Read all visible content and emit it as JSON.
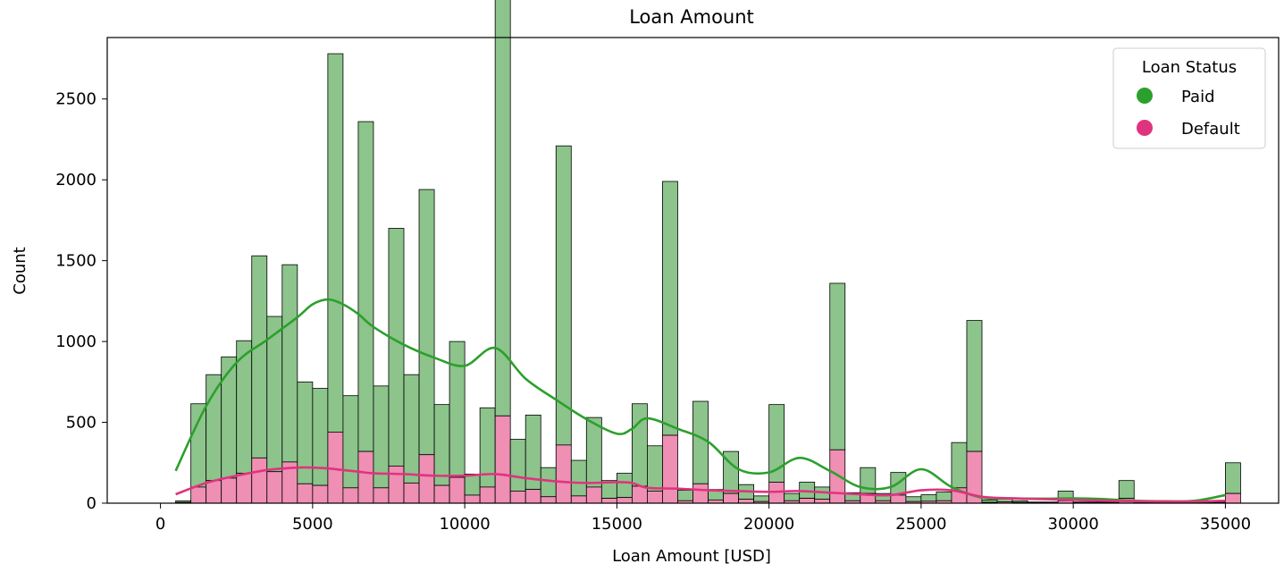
{
  "chart_data": {
    "type": "bar",
    "stacked": true,
    "title": "Loan Amount",
    "xlabel": "Loan Amount [USD]",
    "ylabel": "Count",
    "xlim": [
      -1750,
      36750
    ],
    "ylim": [
      0,
      2880
    ],
    "xticks": [
      0,
      5000,
      10000,
      15000,
      20000,
      25000,
      30000,
      35000
    ],
    "yticks": [
      0,
      500,
      1000,
      1500,
      2000,
      2500
    ],
    "bin_width": 500,
    "legend_position": "upper right",
    "legend_title": "Loan Status",
    "colors": {
      "paid": "#2ca02c",
      "default": "#e0337e"
    },
    "bins": [
      {
        "x0": 500,
        "paid": 10,
        "default": 5
      },
      {
        "x0": 1000,
        "paid": 515,
        "default": 100
      },
      {
        "x0": 1500,
        "paid": 655,
        "default": 140
      },
      {
        "x0": 2000,
        "paid": 750,
        "default": 155
      },
      {
        "x0": 2500,
        "paid": 820,
        "default": 185
      },
      {
        "x0": 3000,
        "paid": 1250,
        "default": 280
      },
      {
        "x0": 3500,
        "paid": 960,
        "default": 195
      },
      {
        "x0": 4000,
        "paid": 1220,
        "default": 255
      },
      {
        "x0": 4500,
        "paid": 630,
        "default": 120
      },
      {
        "x0": 5000,
        "paid": 600,
        "default": 110
      },
      {
        "x0": 5500,
        "paid": 2340,
        "default": 440
      },
      {
        "x0": 6000,
        "paid": 570,
        "default": 95
      },
      {
        "x0": 6500,
        "paid": 2040,
        "default": 320
      },
      {
        "x0": 7000,
        "paid": 630,
        "default": 95
      },
      {
        "x0": 7500,
        "paid": 1470,
        "default": 230
      },
      {
        "x0": 8000,
        "paid": 670,
        "default": 125
      },
      {
        "x0": 8500,
        "paid": 1640,
        "default": 300
      },
      {
        "x0": 9000,
        "paid": 500,
        "default": 110
      },
      {
        "x0": 9500,
        "paid": 840,
        "default": 160
      },
      {
        "x0": 10000,
        "paid": 130,
        "default": 50
      },
      {
        "x0": 10500,
        "paid": 490,
        "default": 100
      },
      {
        "x0": 11000,
        "paid": 2780,
        "default": 540
      },
      {
        "x0": 11500,
        "paid": 320,
        "default": 75
      },
      {
        "x0": 12000,
        "paid": 460,
        "default": 85
      },
      {
        "x0": 12500,
        "paid": 180,
        "default": 40
      },
      {
        "x0": 13000,
        "paid": 1850,
        "default": 360
      },
      {
        "x0": 13500,
        "paid": 220,
        "default": 45
      },
      {
        "x0": 14000,
        "paid": 430,
        "default": 100
      },
      {
        "x0": 14500,
        "paid": 110,
        "default": 30
      },
      {
        "x0": 15000,
        "paid": 150,
        "default": 35
      },
      {
        "x0": 15500,
        "paid": 510,
        "default": 105
      },
      {
        "x0": 16000,
        "paid": 280,
        "default": 75
      },
      {
        "x0": 16500,
        "paid": 1570,
        "default": 420
      },
      {
        "x0": 17000,
        "paid": 65,
        "default": 15
      },
      {
        "x0": 17500,
        "paid": 510,
        "default": 120
      },
      {
        "x0": 18000,
        "paid": 65,
        "default": 20
      },
      {
        "x0": 18500,
        "paid": 260,
        "default": 60
      },
      {
        "x0": 19000,
        "paid": 90,
        "default": 25
      },
      {
        "x0": 19500,
        "paid": 35,
        "default": 10
      },
      {
        "x0": 20000,
        "paid": 480,
        "default": 130
      },
      {
        "x0": 20500,
        "paid": 45,
        "default": 15
      },
      {
        "x0": 21000,
        "paid": 100,
        "default": 30
      },
      {
        "x0": 21500,
        "paid": 75,
        "default": 25
      },
      {
        "x0": 22000,
        "paid": 1030,
        "default": 330
      },
      {
        "x0": 22500,
        "paid": 50,
        "default": 15
      },
      {
        "x0": 23000,
        "paid": 160,
        "default": 60
      },
      {
        "x0": 23500,
        "paid": 45,
        "default": 15
      },
      {
        "x0": 24000,
        "paid": 140,
        "default": 50
      },
      {
        "x0": 24500,
        "paid": 30,
        "default": 10
      },
      {
        "x0": 25000,
        "paid": 40,
        "default": 12
      },
      {
        "x0": 25500,
        "paid": 55,
        "default": 15
      },
      {
        "x0": 26000,
        "paid": 280,
        "default": 95
      },
      {
        "x0": 26500,
        "paid": 810,
        "default": 320
      },
      {
        "x0": 27000,
        "paid": 15,
        "default": 5
      },
      {
        "x0": 27500,
        "paid": 20,
        "default": 8
      },
      {
        "x0": 28000,
        "paid": 10,
        "default": 5
      },
      {
        "x0": 28500,
        "paid": 5,
        "default": 2
      },
      {
        "x0": 29000,
        "paid": 5,
        "default": 2
      },
      {
        "x0": 29500,
        "paid": 60,
        "default": 15
      },
      {
        "x0": 30000,
        "paid": 5,
        "default": 2
      },
      {
        "x0": 30500,
        "paid": 5,
        "default": 2
      },
      {
        "x0": 31000,
        "paid": 5,
        "default": 2
      },
      {
        "x0": 31500,
        "paid": 110,
        "default": 30
      },
      {
        "x0": 32000,
        "paid": 5,
        "default": 2
      },
      {
        "x0": 32500,
        "paid": 5,
        "default": 2
      },
      {
        "x0": 33000,
        "paid": 5,
        "default": 2
      },
      {
        "x0": 33500,
        "paid": 5,
        "default": 2
      },
      {
        "x0": 34000,
        "paid": 5,
        "default": 2
      },
      {
        "x0": 34500,
        "paid": 5,
        "default": 2
      },
      {
        "x0": 35000,
        "paid": 190,
        "default": 60
      }
    ],
    "kde": {
      "x": [
        500,
        1500,
        2500,
        3500,
        4500,
        5000,
        5500,
        6000,
        6500,
        7000,
        8000,
        9000,
        10000,
        11000,
        12000,
        13000,
        14000,
        15000,
        15500,
        16000,
        17000,
        18000,
        19000,
        20000,
        21000,
        22000,
        23000,
        24000,
        25000,
        26000,
        27000,
        28000,
        29000,
        30000,
        31000,
        32000,
        33000,
        34000,
        35000
      ],
      "paid": [
        200,
        600,
        870,
        1010,
        1150,
        1230,
        1260,
        1230,
        1170,
        1090,
        980,
        900,
        850,
        960,
        770,
        640,
        520,
        430,
        460,
        525,
        460,
        380,
        210,
        190,
        280,
        200,
        100,
        100,
        210,
        100,
        35,
        30,
        28,
        30,
        25,
        15,
        12,
        15,
        50
      ],
      "default": [
        55,
        125,
        170,
        205,
        220,
        220,
        215,
        205,
        195,
        185,
        180,
        170,
        170,
        180,
        155,
        135,
        125,
        130,
        125,
        95,
        90,
        80,
        75,
        70,
        75,
        65,
        55,
        50,
        80,
        80,
        40,
        30,
        25,
        20,
        15,
        12,
        10,
        10,
        15
      ]
    },
    "series": [
      {
        "name": "Paid",
        "key": "paid"
      },
      {
        "name": "Default",
        "key": "default"
      }
    ]
  }
}
